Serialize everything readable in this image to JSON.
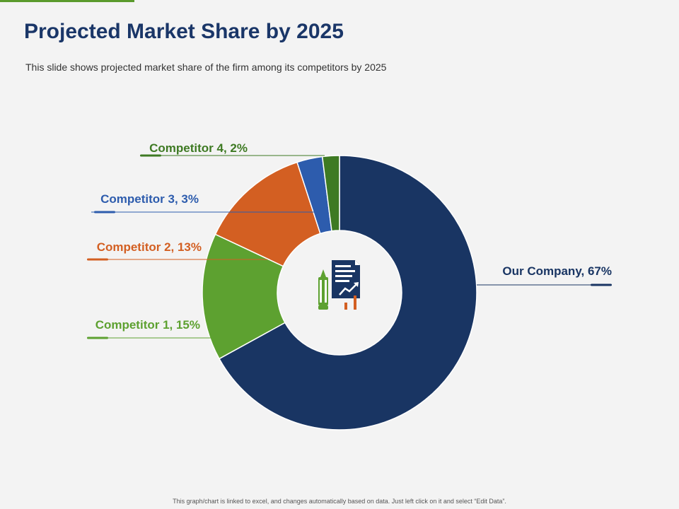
{
  "slide": {
    "title": "Projected Market Share by 2025",
    "subtitle": "This slide shows projected market share of the firm among its competitors by 2025",
    "footer_note": "This graph/chart is linked to excel, and changes automatically based on data. Just left click on it and select “Edit Data”.",
    "accent_color": "#5a9a2c",
    "title_color": "#1a3668",
    "center_icon": "document-chart-with-pencil-icon"
  },
  "chart_data": {
    "type": "pie",
    "variant": "donut",
    "unit": "%",
    "slices": [
      {
        "name": "Our Company",
        "value": 67,
        "label": "Our Company, 67%",
        "color": "#193563",
        "label_side": "right"
      },
      {
        "name": "Competitor 1",
        "value": 15,
        "label": "Competitor 1, 15%",
        "color": "#5da130",
        "label_side": "left"
      },
      {
        "name": "Competitor 2",
        "value": 13,
        "label": "Competitor 2, 13%",
        "color": "#d35f22",
        "label_side": "left"
      },
      {
        "name": "Competitor 3",
        "value": 3,
        "label": "Competitor 3, 3%",
        "color": "#2d5cad",
        "label_side": "left"
      },
      {
        "name": "Competitor 4",
        "value": 2,
        "label": "Competitor 4, 2%",
        "color": "#3e7a23",
        "label_side": "left"
      }
    ]
  }
}
